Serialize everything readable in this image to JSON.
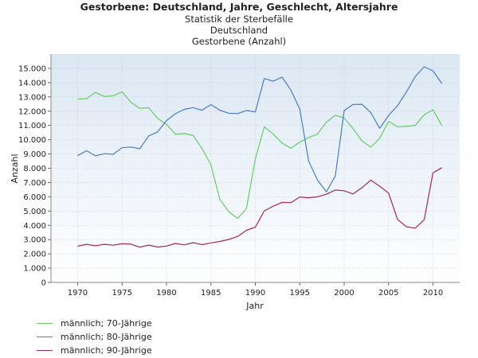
{
  "chart_data": {
    "type": "line",
    "title": "Gestorbene: Deutschland, Jahre, Geschlecht, Altersjahre",
    "subtitle": [
      "Statistik der Sterbefälle",
      "Deutschland",
      "Gestorbene (Anzahl)"
    ],
    "xlabel": "Jahr",
    "ylabel": "Anzahl",
    "xlim": [
      1967,
      2013
    ],
    "ylim": [
      0,
      16000
    ],
    "x_ticks": [
      1970,
      1975,
      1980,
      1985,
      1990,
      1995,
      2000,
      2005,
      2010
    ],
    "x_tick_labels": [
      "1970",
      "1975",
      "1980",
      "1985",
      "1990",
      "1995",
      "2000",
      "2005",
      "2010"
    ],
    "y_ticks": [
      0,
      1000,
      2000,
      3000,
      4000,
      5000,
      6000,
      7000,
      8000,
      9000,
      10000,
      11000,
      12000,
      13000,
      14000,
      15000
    ],
    "y_tick_labels": [
      "0",
      "1.000",
      "2.000",
      "3.000",
      "4.000",
      "5.000",
      "6.000",
      "7.000",
      "8.000",
      "9.000",
      "10.000",
      "11.000",
      "12.000",
      "13.000",
      "14.000",
      "15.000"
    ],
    "grid": true,
    "legend_position": "bottom-left",
    "x": [
      1970,
      1971,
      1972,
      1973,
      1974,
      1975,
      1976,
      1977,
      1978,
      1979,
      1980,
      1981,
      1982,
      1983,
      1984,
      1985,
      1986,
      1987,
      1988,
      1989,
      1990,
      1991,
      1992,
      1993,
      1994,
      1995,
      1996,
      1997,
      1998,
      1999,
      2000,
      2001,
      2002,
      2003,
      2004,
      2005,
      2006,
      2007,
      2008,
      2009,
      2010,
      2011
    ],
    "series": [
      {
        "name": "männlich; 70-Jährige",
        "color": "#66cc66",
        "values": [
          12850,
          12880,
          13320,
          13030,
          13080,
          13360,
          12620,
          12200,
          12240,
          11490,
          11070,
          10390,
          10430,
          10310,
          9380,
          8250,
          5820,
          4960,
          4490,
          5160,
          8660,
          10900,
          10410,
          9760,
          9400,
          9830,
          10150,
          10410,
          11230,
          11720,
          11530,
          10780,
          9920,
          9480,
          10100,
          11290,
          10910,
          10930,
          11010,
          11750,
          12090,
          10990
        ]
      },
      {
        "name": "männlich; 80-Jährige",
        "color": "#4a7cc9",
        "values": [
          8880,
          9230,
          8870,
          9020,
          8980,
          9440,
          9490,
          9370,
          10270,
          10540,
          11340,
          11820,
          12130,
          12250,
          12070,
          12460,
          12070,
          11860,
          11830,
          12050,
          11950,
          14290,
          14100,
          14390,
          13480,
          12150,
          8500,
          7170,
          6350,
          7460,
          12040,
          12470,
          12480,
          11900,
          10800,
          11700,
          12380,
          13340,
          14420,
          15110,
          14830,
          13930
        ]
      },
      {
        "name": "männlich; 90-Jährige",
        "color": "#a82858",
        "values": [
          2540,
          2670,
          2570,
          2670,
          2610,
          2710,
          2680,
          2470,
          2620,
          2480,
          2550,
          2730,
          2630,
          2790,
          2640,
          2770,
          2870,
          3010,
          3220,
          3650,
          3870,
          5010,
          5340,
          5610,
          5590,
          5990,
          5930,
          6000,
          6180,
          6470,
          6420,
          6200,
          6640,
          7170,
          6740,
          6260,
          4420,
          3900,
          3800,
          4390,
          7690,
          8040
        ]
      }
    ]
  }
}
